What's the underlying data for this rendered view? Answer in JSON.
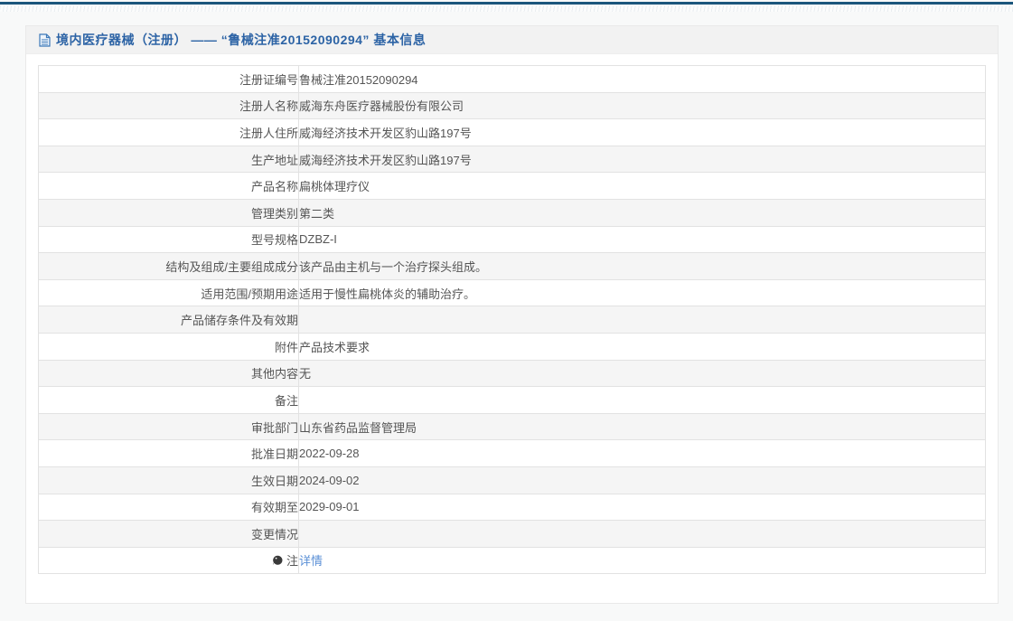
{
  "colors": {
    "topbar": "#1b567c",
    "title": "#2c63a5",
    "link": "#5a8fd6",
    "text": "#555555",
    "row-alt": "#f5f5f5",
    "header-bg": "#f2f2f2"
  },
  "header": {
    "title": "境内医疗器械（注册） —— “鲁械注准20152090294” 基本信息",
    "icon": "document-icon"
  },
  "table": {
    "rows": [
      {
        "label": "注册证编号",
        "value": "鲁械注准20152090294"
      },
      {
        "label": "注册人名称",
        "value": "威海东舟医疗器械股份有限公司"
      },
      {
        "label": "注册人住所",
        "value": "威海经济技术开发区豹山路197号"
      },
      {
        "label": "生产地址",
        "value": "威海经济技术开发区豹山路197号"
      },
      {
        "label": "产品名称",
        "value": "扁桃体理疗仪"
      },
      {
        "label": "管理类别",
        "value": "第二类"
      },
      {
        "label": "型号规格",
        "value": "DZBZ-I"
      },
      {
        "label": "结构及组成/主要组成成分",
        "value": "该产品由主机与一个治疗探头组成。"
      },
      {
        "label": "适用范围/预期用途",
        "value": "适用于慢性扁桃体炎的辅助治疗。"
      },
      {
        "label": "产品储存条件及有效期",
        "value": ""
      },
      {
        "label": "附件",
        "value": "产品技术要求"
      },
      {
        "label": "其他内容",
        "value": "无"
      },
      {
        "label": "备注",
        "value": ""
      },
      {
        "label": "审批部门",
        "value": "山东省药品监督管理局"
      },
      {
        "label": "批准日期",
        "value": "2022-09-28"
      },
      {
        "label": "生效日期",
        "value": "2024-09-02"
      },
      {
        "label": "有效期至",
        "value": "2029-09-01"
      },
      {
        "label": "变更情况",
        "value": ""
      },
      {
        "label": "注",
        "value": "详情",
        "link": true,
        "icon": "comment-icon"
      }
    ]
  }
}
